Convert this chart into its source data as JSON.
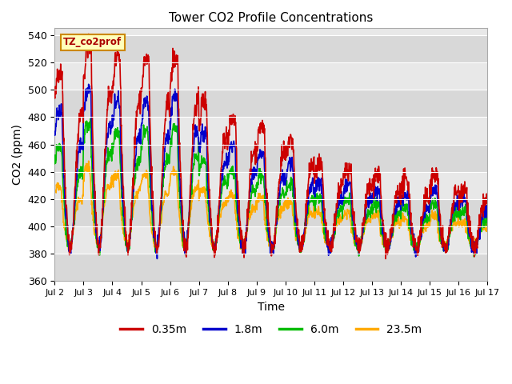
{
  "title": "Tower CO2 Profile Concentrations",
  "xlabel": "Time",
  "ylabel": "CO2 (ppm)",
  "ylim": [
    360,
    545
  ],
  "yticks": [
    360,
    380,
    400,
    420,
    440,
    460,
    480,
    500,
    520,
    540
  ],
  "series_labels": [
    "0.35m",
    "1.8m",
    "6.0m",
    "23.5m"
  ],
  "series_colors": [
    "#cc0000",
    "#0000cc",
    "#00bb00",
    "#ffaa00"
  ],
  "series_linewidths": [
    1.2,
    1.2,
    1.2,
    1.2
  ],
  "xtick_labels": [
    "Jul 2",
    "Jul 3",
    "Jul 4",
    "Jul 5",
    "Jul 6",
    "Jul 7",
    "Jul 8",
    "Jul 9",
    "Jul 10",
    "Jul 11",
    "Jul 12",
    "Jul 13",
    "Jul 14",
    "Jul 15",
    "Jul 16",
    "Jul 17"
  ],
  "label_box_text": "TZ_co2prof",
  "label_box_color": "#ffffbb",
  "label_box_edge": "#cc8800",
  "plot_bg_color": "#e8e8e8",
  "fig_bg_color": "#ffffff",
  "grid_color": "#ffffff",
  "band_colors": [
    "#d8d8d8",
    "#e8e8e8"
  ],
  "dpi": 100,
  "figsize": [
    6.4,
    4.8
  ],
  "n_days": 15,
  "base_co2": 383
}
